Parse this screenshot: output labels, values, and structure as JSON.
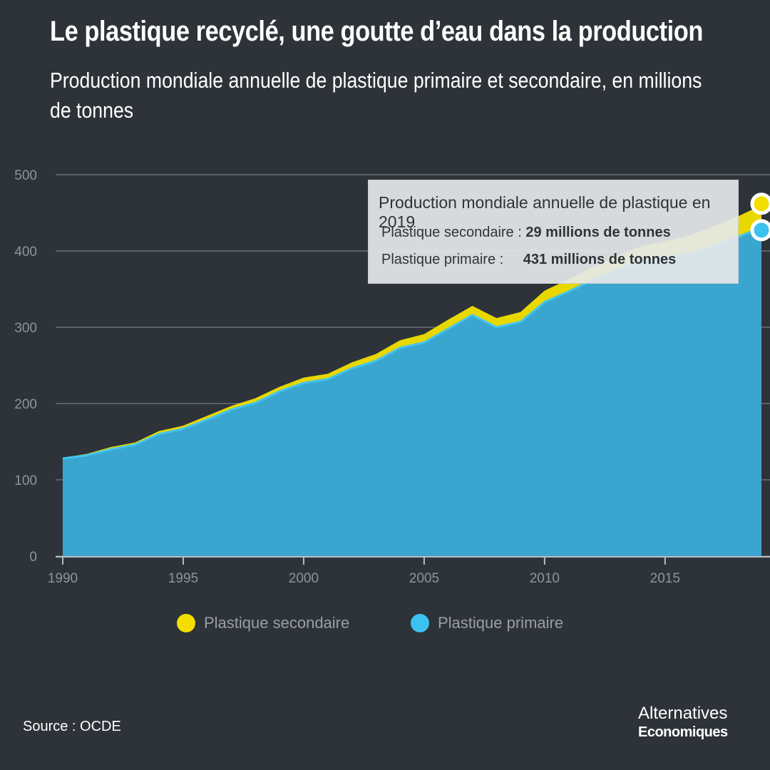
{
  "header": {
    "title": "Le plastique recyclé, une goutte d’eau dans la production",
    "subtitle": "Production mondiale annuelle de plastique primaire et secondaire, en millions de tonnes"
  },
  "chart_data": {
    "type": "area",
    "stacked": true,
    "x": [
      1990,
      1991,
      1992,
      1993,
      1994,
      1995,
      1996,
      1997,
      1998,
      1999,
      2000,
      2001,
      2002,
      2003,
      2004,
      2005,
      2006,
      2007,
      2008,
      2009,
      2010,
      2011,
      2012,
      2013,
      2014,
      2015,
      2016,
      2017,
      2018,
      2019
    ],
    "series": [
      {
        "name": "Plastique primaire",
        "color": "#3aa6d0",
        "values": [
          128,
          132,
          140,
          146,
          160,
          167,
          179,
          192,
          201,
          216,
          227,
          232,
          246,
          256,
          273,
          280,
          298,
          316,
          300,
          307,
          333,
          347,
          362,
          375,
          386,
          391,
          396,
          406,
          418,
          431
        ]
      },
      {
        "name": "Plastique secondaire",
        "color": "#e8d800",
        "values": [
          1,
          2,
          3,
          3,
          4,
          4,
          5,
          5,
          6,
          6,
          7,
          7,
          8,
          9,
          10,
          11,
          12,
          12,
          12,
          13,
          15,
          16,
          17,
          19,
          20,
          22,
          24,
          26,
          27,
          29
        ]
      }
    ],
    "xticks": [
      1990,
      1995,
      2000,
      2005,
      2010,
      2015
    ],
    "yticks": [
      0,
      100,
      200,
      300,
      400,
      500
    ],
    "ylim": [
      0,
      500
    ],
    "xlim": [
      1990,
      2019
    ],
    "grid": true,
    "legend_position": "bottom-left",
    "tooltip": {
      "title": "Production mondiale annuelle de plastique en 2019",
      "secondary_label": "Plastique secondaire :",
      "secondary_value": "29 millions de tonnes",
      "primary_label": "Plastique primaire :",
      "primary_value": "431 millions de tonnes"
    }
  },
  "legend": {
    "secondary": "Plastique secondaire",
    "primary": "Plastique primaire"
  },
  "footer": {
    "source": "Source : OCDE",
    "brand_line1": "Alternatives",
    "brand_line2": "Economiques"
  }
}
